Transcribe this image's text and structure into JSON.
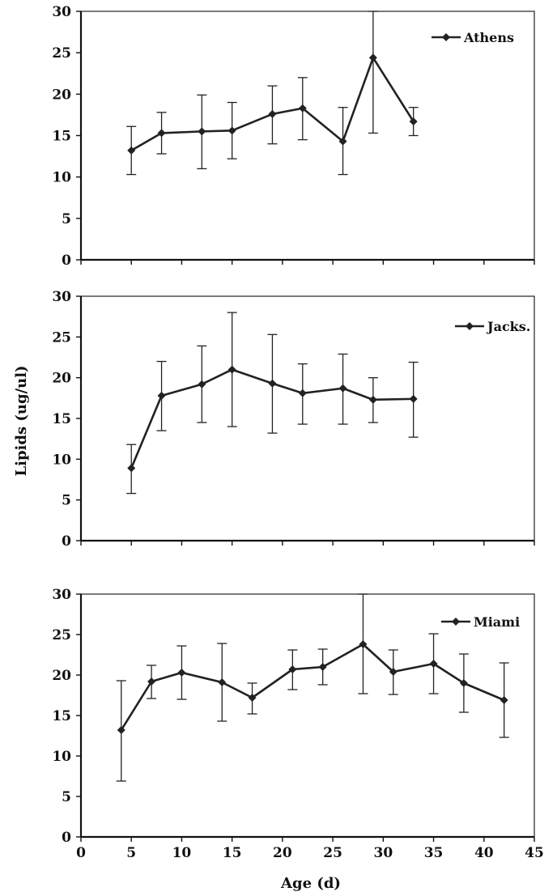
{
  "ylabel": "Lipids (ug/ul)",
  "xlabel": "Age (d)",
  "x_ticks": [
    "0",
    "5",
    "10",
    "15",
    "20",
    "25",
    "30",
    "35",
    "40",
    "45"
  ],
  "y_ticks": [
    "0",
    "5",
    "10",
    "15",
    "20",
    "25",
    "30"
  ],
  "chart_data": [
    {
      "type": "line",
      "title": "",
      "xlim": [
        0,
        45
      ],
      "ylim": [
        0,
        30
      ],
      "legend_position": "top-right",
      "series": [
        {
          "name": "Athens",
          "x": [
            5,
            8,
            12,
            15,
            19,
            22,
            26,
            29,
            33
          ],
          "y": [
            13.2,
            15.3,
            15.5,
            15.6,
            17.6,
            18.3,
            14.3,
            24.4,
            16.7
          ],
          "err_low": [
            10.3,
            12.8,
            11.0,
            12.2,
            14.0,
            14.5,
            10.3,
            15.3,
            15.0
          ],
          "err_high": [
            16.1,
            17.8,
            19.9,
            19.0,
            21.0,
            22.0,
            18.4,
            30.0,
            18.4
          ]
        }
      ]
    },
    {
      "type": "line",
      "title": "",
      "xlim": [
        0,
        45
      ],
      "ylim": [
        0,
        30
      ],
      "legend_position": "top-right",
      "series": [
        {
          "name": "Jacks.",
          "x": [
            5,
            8,
            12,
            15,
            19,
            22,
            26,
            29,
            33
          ],
          "y": [
            8.9,
            17.8,
            19.2,
            21.0,
            19.3,
            18.1,
            18.7,
            17.3,
            17.4
          ],
          "err_low": [
            5.8,
            13.5,
            14.5,
            14.0,
            13.2,
            14.3,
            14.3,
            14.5,
            12.7
          ],
          "err_high": [
            11.8,
            22.0,
            23.9,
            28.0,
            25.3,
            21.7,
            22.9,
            20.0,
            21.9
          ]
        }
      ]
    },
    {
      "type": "line",
      "title": "",
      "xlim": [
        0,
        45
      ],
      "ylim": [
        0,
        30
      ],
      "legend_position": "top-right",
      "series": [
        {
          "name": "Miami",
          "x": [
            4,
            7,
            10,
            14,
            17,
            21,
            24,
            28,
            31,
            35,
            38,
            42
          ],
          "y": [
            13.2,
            19.2,
            20.3,
            19.1,
            17.2,
            20.7,
            21.0,
            23.8,
            20.4,
            21.4,
            19.0,
            16.9
          ],
          "err_low": [
            6.9,
            17.1,
            17.0,
            14.3,
            15.2,
            18.2,
            18.8,
            17.7,
            17.6,
            17.7,
            15.4,
            12.3
          ],
          "err_high": [
            19.3,
            21.2,
            23.6,
            23.9,
            19.0,
            23.1,
            23.2,
            30.0,
            23.1,
            25.1,
            22.6,
            21.5
          ]
        }
      ]
    }
  ]
}
